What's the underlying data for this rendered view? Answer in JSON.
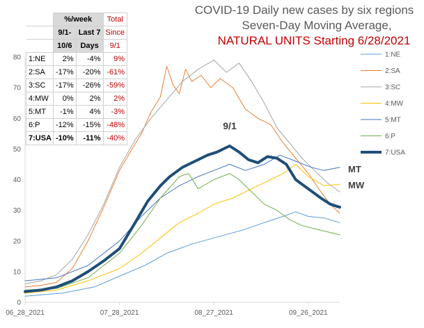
{
  "chart_data": {
    "type": "line",
    "title": "COVID-19 Daily new cases by six regions",
    "subtitle_line2": "Seven-Day Moving Average,",
    "subtitle_line3": "NATURAL UNITS Starting 6/28/2021",
    "xlabel": "",
    "ylabel": "",
    "x_start": "2021-06-28",
    "x_end": "2021-10-06",
    "x_ticks": [
      "06_28_2021",
      "07_28_2021",
      "08_27_2021",
      "09_26_2021"
    ],
    "ylim": [
      0,
      80
    ],
    "y_ticks": [
      "0",
      "10",
      "20",
      "30",
      "40",
      "50",
      "60",
      "70",
      "80"
    ],
    "grid": false,
    "legend_position": "right",
    "series": [
      {
        "name": "1:NE",
        "color": "#5b9bd5",
        "width": 1,
        "points": [
          [
            "2021-06-28",
            2.0
          ],
          [
            "2021-07-10",
            3.0
          ],
          [
            "2021-07-20",
            5.0
          ],
          [
            "2021-07-28",
            8.5
          ],
          [
            "2021-08-05",
            12.0
          ],
          [
            "2021-08-12",
            16.0
          ],
          [
            "2021-08-20",
            19.0
          ],
          [
            "2021-08-27",
            21.0
          ],
          [
            "2021-09-05",
            23.5
          ],
          [
            "2021-09-12",
            26.0
          ],
          [
            "2021-09-18",
            28.0
          ],
          [
            "2021-09-22",
            29.5
          ],
          [
            "2021-09-26",
            28.0
          ],
          [
            "2021-10-01",
            27.5
          ],
          [
            "2021-10-06",
            26.0
          ]
        ]
      },
      {
        "name": "2:SA",
        "color": "#ed7d31",
        "width": 1,
        "points": [
          [
            "2021-06-28",
            5.0
          ],
          [
            "2021-07-03",
            5.5
          ],
          [
            "2021-07-08",
            6.5
          ],
          [
            "2021-07-13",
            11.0
          ],
          [
            "2021-07-18",
            20.0
          ],
          [
            "2021-07-23",
            31.0
          ],
          [
            "2021-07-28",
            43.0
          ],
          [
            "2021-08-01",
            50.0
          ],
          [
            "2021-08-04",
            55.0
          ],
          [
            "2021-08-07",
            62.0
          ],
          [
            "2021-08-10",
            67.0
          ],
          [
            "2021-08-12",
            77.0
          ],
          [
            "2021-08-14",
            71.0
          ],
          [
            "2021-08-16",
            68.0
          ],
          [
            "2021-08-18",
            76.0
          ],
          [
            "2021-08-20",
            72.0
          ],
          [
            "2021-08-23",
            74.0
          ],
          [
            "2021-08-26",
            70.0
          ],
          [
            "2021-08-29",
            73.0
          ],
          [
            "2021-09-02",
            70.0
          ],
          [
            "2021-09-06",
            63.0
          ],
          [
            "2021-09-10",
            60.0
          ],
          [
            "2021-09-14",
            58.0
          ],
          [
            "2021-09-18",
            52.0
          ],
          [
            "2021-09-22",
            47.0
          ],
          [
            "2021-09-26",
            42.0
          ],
          [
            "2021-09-30",
            36.0
          ],
          [
            "2021-10-03",
            32.0
          ],
          [
            "2021-10-06",
            29.0
          ]
        ]
      },
      {
        "name": "3:SC",
        "color": "#a5a5a5",
        "width": 1,
        "points": [
          [
            "2021-06-28",
            6.0
          ],
          [
            "2021-07-03",
            7.0
          ],
          [
            "2021-07-08",
            9.0
          ],
          [
            "2021-07-13",
            14.0
          ],
          [
            "2021-07-18",
            22.0
          ],
          [
            "2021-07-23",
            32.0
          ],
          [
            "2021-07-28",
            44.0
          ],
          [
            "2021-08-02",
            53.0
          ],
          [
            "2021-08-07",
            60.0
          ],
          [
            "2021-08-12",
            66.0
          ],
          [
            "2021-08-17",
            72.0
          ],
          [
            "2021-08-22",
            76.0
          ],
          [
            "2021-08-27",
            79.0
          ],
          [
            "2021-08-31",
            75.0
          ],
          [
            "2021-09-04",
            78.0
          ],
          [
            "2021-09-08",
            72.0
          ],
          [
            "2021-09-12",
            65.0
          ],
          [
            "2021-09-16",
            57.0
          ],
          [
            "2021-09-20",
            52.0
          ],
          [
            "2021-09-24",
            47.0
          ],
          [
            "2021-09-28",
            43.0
          ],
          [
            "2021-10-02",
            39.0
          ],
          [
            "2021-10-06",
            36.0
          ]
        ]
      },
      {
        "name": "4:MW",
        "color": "#ffc000",
        "width": 1,
        "points": [
          [
            "2021-06-28",
            3.0
          ],
          [
            "2021-07-08",
            4.0
          ],
          [
            "2021-07-18",
            7.0
          ],
          [
            "2021-07-28",
            11.0
          ],
          [
            "2021-08-04",
            16.0
          ],
          [
            "2021-08-10",
            21.0
          ],
          [
            "2021-08-16",
            26.0
          ],
          [
            "2021-08-22",
            29.0
          ],
          [
            "2021-08-27",
            32.0
          ],
          [
            "2021-09-02",
            34.0
          ],
          [
            "2021-09-08",
            37.0
          ],
          [
            "2021-09-14",
            40.0
          ],
          [
            "2021-09-18",
            42.0
          ],
          [
            "2021-09-22",
            45.0
          ],
          [
            "2021-09-26",
            41.0
          ],
          [
            "2021-10-01",
            38.0
          ],
          [
            "2021-10-06",
            38.5
          ]
        ]
      },
      {
        "name": "5:MT",
        "color": "#4472c4",
        "width": 1,
        "points": [
          [
            "2021-06-28",
            7.0
          ],
          [
            "2021-07-08",
            8.0
          ],
          [
            "2021-07-18",
            12.0
          ],
          [
            "2021-07-28",
            20.0
          ],
          [
            "2021-08-04",
            28.0
          ],
          [
            "2021-08-10",
            34.0
          ],
          [
            "2021-08-16",
            38.0
          ],
          [
            "2021-08-22",
            41.0
          ],
          [
            "2021-08-27",
            43.0
          ],
          [
            "2021-09-01",
            45.0
          ],
          [
            "2021-09-06",
            43.0
          ],
          [
            "2021-09-12",
            45.0
          ],
          [
            "2021-09-17",
            48.0
          ],
          [
            "2021-09-22",
            46.0
          ],
          [
            "2021-09-27",
            44.0
          ],
          [
            "2021-10-01",
            43.0
          ],
          [
            "2021-10-06",
            44.0
          ]
        ]
      },
      {
        "name": "6:P",
        "color": "#70ad47",
        "width": 1,
        "points": [
          [
            "2021-06-28",
            4.0
          ],
          [
            "2021-07-08",
            4.5
          ],
          [
            "2021-07-18",
            8.0
          ],
          [
            "2021-07-28",
            16.0
          ],
          [
            "2021-08-04",
            25.0
          ],
          [
            "2021-08-10",
            34.0
          ],
          [
            "2021-08-16",
            41.0
          ],
          [
            "2021-08-19",
            42.0
          ],
          [
            "2021-08-22",
            37.0
          ],
          [
            "2021-08-27",
            40.0
          ],
          [
            "2021-09-01",
            42.0
          ],
          [
            "2021-09-04",
            40.0
          ],
          [
            "2021-09-08",
            36.0
          ],
          [
            "2021-09-12",
            32.0
          ],
          [
            "2021-09-16",
            30.0
          ],
          [
            "2021-09-20",
            27.0
          ],
          [
            "2021-09-24",
            25.0
          ],
          [
            "2021-09-28",
            24.0
          ],
          [
            "2021-10-02",
            23.0
          ],
          [
            "2021-10-06",
            22.0
          ]
        ]
      },
      {
        "name": "7:USA",
        "color": "#1f4e79",
        "width": 4,
        "points": [
          [
            "2021-06-28",
            3.5
          ],
          [
            "2021-07-03",
            4.0
          ],
          [
            "2021-07-08",
            5.0
          ],
          [
            "2021-07-13",
            7.0
          ],
          [
            "2021-07-18",
            10.0
          ],
          [
            "2021-07-23",
            13.5
          ],
          [
            "2021-07-28",
            17.5
          ],
          [
            "2021-08-02",
            26.0
          ],
          [
            "2021-08-06",
            33.0
          ],
          [
            "2021-08-10",
            38.0
          ],
          [
            "2021-08-13",
            41.0
          ],
          [
            "2021-08-17",
            44.0
          ],
          [
            "2021-08-21",
            46.0
          ],
          [
            "2021-08-25",
            48.0
          ],
          [
            "2021-08-28",
            49.0
          ],
          [
            "2021-09-01",
            51.0
          ],
          [
            "2021-09-04",
            49.0
          ],
          [
            "2021-09-07",
            46.5
          ],
          [
            "2021-09-10",
            45.5
          ],
          [
            "2021-09-13",
            47.5
          ],
          [
            "2021-09-16",
            47.0
          ],
          [
            "2021-09-19",
            45.0
          ],
          [
            "2021-09-22",
            40.0
          ],
          [
            "2021-09-26",
            37.0
          ],
          [
            "2021-09-30",
            34.0
          ],
          [
            "2021-10-03",
            32.0
          ],
          [
            "2021-10-06",
            31.0
          ]
        ]
      }
    ],
    "annotations": {
      "peak": "9/1",
      "mt": "MT",
      "mw": "MW"
    }
  },
  "table": {
    "header_week": "%/week",
    "col1_line1": "9/1-",
    "col1_line2": "10/6",
    "col2_line1": "Last 7",
    "col2_line2": "Days",
    "col3_line1": "Total",
    "col3_line2": "Since",
    "col3_line3": "9/1",
    "rows": [
      {
        "label": "1:NE",
        "a": "2%",
        "b": "-4%",
        "total": "9%"
      },
      {
        "label": "2:SA",
        "a": "-17%",
        "b": "-20%",
        "total": "-61%"
      },
      {
        "label": "3:SC",
        "a": "-17%",
        "b": "-26%",
        "total": "-59%"
      },
      {
        "label": "4:MW",
        "a": "0%",
        "b": "2%",
        "total": "2%"
      },
      {
        "label": "5:MT",
        "a": "-1%",
        "b": "4%",
        "total": "-3%"
      },
      {
        "label": "6:P",
        "a": "-12%",
        "b": "-15%",
        "total": "-48%"
      },
      {
        "label": "7:USA",
        "a": "-10%",
        "b": "-11%",
        "total": "-40%"
      }
    ]
  }
}
